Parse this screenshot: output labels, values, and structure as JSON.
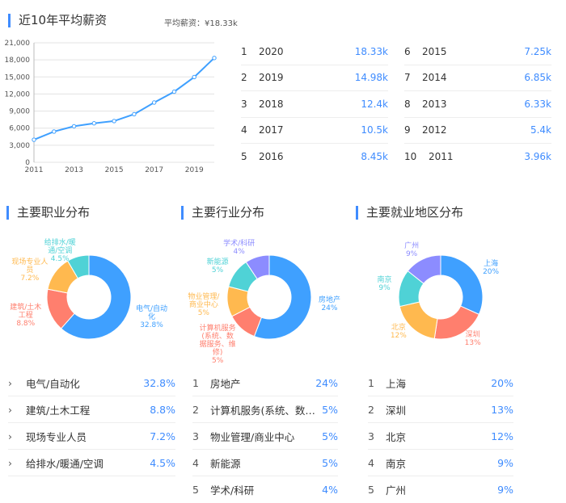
{
  "salary": {
    "title": "近10年平均薪资",
    "average_label": "平均薪资：¥18.33k"
  },
  "chart_data": [
    {
      "type": "line",
      "title": "近10年平均薪资",
      "x": [
        2011,
        2012,
        2013,
        2014,
        2015,
        2016,
        2017,
        2018,
        2019,
        2020
      ],
      "values": [
        3960,
        5400,
        6330,
        6850,
        7250,
        8450,
        10500,
        12400,
        14980,
        18330
      ],
      "ylim": [
        0,
        21000
      ],
      "yticks": [
        "0",
        "3,000",
        "6,000",
        "9,000",
        "12,000",
        "15,000",
        "18,000",
        "21,000"
      ],
      "xticks": [
        "2011",
        "2013",
        "2015",
        "2017",
        "2019"
      ],
      "grid": true,
      "color": "#3fa0ff"
    },
    {
      "type": "pie",
      "title": "主要职业分布",
      "categories": [
        "电气/自动化",
        "建筑/土木工程",
        "现场专业人员",
        "给排水/暖通/空调"
      ],
      "labels": [
        "电气/自动\n化\n32.8%",
        "建筑/土木\n工程\n8.8%",
        "现场专业人\n员\n7.2%",
        "给排水/暖\n通/空调\n4.5%"
      ],
      "values": [
        32.8,
        8.8,
        7.2,
        4.5
      ]
    },
    {
      "type": "pie",
      "title": "主要行业分布",
      "categories": [
        "房地产",
        "计算机服务(系统、数据服务、维修)",
        "物业管理/商业中心",
        "新能源",
        "学术/科研"
      ],
      "labels": [
        "房地产\n24%",
        "计算机服务\n(系统、数\n据服务、维\n修)\n5%",
        "物业管理/\n商业中心\n5%",
        "新能源\n5%",
        "学术/科研\n4%"
      ],
      "values": [
        24,
        5,
        5,
        5,
        4
      ]
    },
    {
      "type": "pie",
      "title": "主要就业地区分布",
      "categories": [
        "上海",
        "深圳",
        "北京",
        "南京",
        "广州"
      ],
      "labels": [
        "上海\n20%",
        "深圳\n13%",
        "北京\n12%",
        "南京\n9%",
        "广州\n9%"
      ],
      "values": [
        20,
        13,
        12,
        9,
        9
      ]
    }
  ],
  "colors": [
    "#3fa0ff",
    "#ff7f6e",
    "#ffb94f",
    "#4fd2d6",
    "#8c8cff"
  ],
  "ranking_left": [
    [
      "1",
      "2020",
      "18.33k"
    ],
    [
      "2",
      "2019",
      "14.98k"
    ],
    [
      "3",
      "2018",
      "12.4k"
    ],
    [
      "4",
      "2017",
      "10.5k"
    ],
    [
      "5",
      "2016",
      "8.45k"
    ]
  ],
  "ranking_right": [
    [
      "6",
      "2015",
      "7.25k"
    ],
    [
      "7",
      "2014",
      "6.85k"
    ],
    [
      "8",
      "2013",
      "6.33k"
    ],
    [
      "9",
      "2012",
      "5.4k"
    ],
    [
      "10",
      "2011",
      "3.96k"
    ]
  ],
  "occupation": {
    "title": "主要职业分布",
    "items": [
      [
        "电气/自动化",
        "32.8%"
      ],
      [
        "建筑/土木工程",
        "8.8%"
      ],
      [
        "现场专业人员",
        "7.2%"
      ],
      [
        "给排水/暖通/空调",
        "4.5%"
      ]
    ]
  },
  "industry": {
    "title": "主要行业分布",
    "items": [
      [
        "1",
        "房地产",
        "24%"
      ],
      [
        "2",
        "计算机服务(系统、数据...",
        "5%"
      ],
      [
        "3",
        "物业管理/商业中心",
        "5%"
      ],
      [
        "4",
        "新能源",
        "5%"
      ],
      [
        "5",
        "学术/科研",
        "4%"
      ]
    ]
  },
  "region": {
    "title": "主要就业地区分布",
    "items": [
      [
        "1",
        "上海",
        "20%"
      ],
      [
        "2",
        "深圳",
        "13%"
      ],
      [
        "3",
        "北京",
        "12%"
      ],
      [
        "4",
        "南京",
        "9%"
      ],
      [
        "5",
        "广州",
        "9%"
      ]
    ]
  }
}
